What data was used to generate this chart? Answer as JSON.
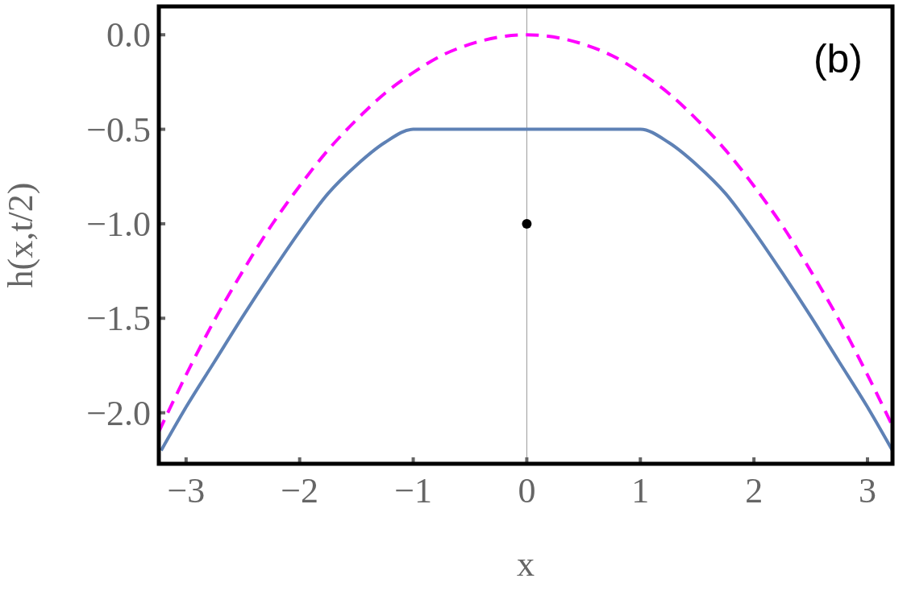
{
  "chart_data": {
    "type": "line",
    "xlabel": "x",
    "ylabel": "h(x,t/2)",
    "annotations": [
      "(b)"
    ],
    "xlim": [
      -3.24,
      3.22
    ],
    "ylim": [
      -2.27,
      0.15
    ],
    "xticks": [
      {
        "value": -3,
        "label": "−3"
      },
      {
        "value": -2,
        "label": "−2"
      },
      {
        "value": -1,
        "label": "−1"
      },
      0,
      1,
      2,
      3
    ],
    "yticks": [
      {
        "value": 0,
        "label": "0.0"
      },
      {
        "value": -0.5,
        "label": "−0.5"
      },
      {
        "value": -1,
        "label": "−1.0"
      },
      {
        "value": -1.5,
        "label": "−1.5"
      },
      {
        "value": -2,
        "label": "−2.0"
      }
    ],
    "grid": false,
    "ref_lines": [
      {
        "axis": "x",
        "value": 0,
        "color": "#999999"
      }
    ],
    "series": [
      {
        "color": "#ff00ff",
        "line_style": "dashed",
        "marker": "none",
        "x": [
          -3.24,
          -3,
          -2.75,
          -2.5,
          -2.25,
          -2,
          -1.75,
          -1.5,
          -1.25,
          -1,
          -0.75,
          -0.5,
          0,
          0.5,
          0.75,
          1,
          1.25,
          1.5,
          1.75,
          2,
          2.25,
          2.5,
          2.75,
          3,
          3.22
        ],
        "values": [
          -2.1,
          -1.8,
          -1.51,
          -1.25,
          -1.01,
          -0.8,
          -0.61,
          -0.45,
          -0.31,
          -0.2,
          -0.11,
          -0.05,
          0,
          -0.05,
          -0.11,
          -0.2,
          -0.31,
          -0.45,
          -0.61,
          -0.8,
          -1.01,
          -1.25,
          -1.51,
          -1.8,
          -2.07
        ]
      },
      {
        "color": "#5e81b5",
        "line_style": "solid",
        "marker": "none",
        "x": [
          -3.22,
          -3,
          -2.75,
          -2.5,
          -2.25,
          -2,
          -1.75,
          -1.5,
          -1.25,
          -1,
          1,
          1.25,
          1.5,
          1.75,
          2,
          2.25,
          2.5,
          2.75,
          3,
          3.22
        ],
        "values": [
          -2.2,
          -1.97,
          -1.73,
          -1.49,
          -1.26,
          -1.04,
          -0.84,
          -0.69,
          -0.57,
          -0.5,
          -0.5,
          -0.57,
          -0.69,
          -0.84,
          -1.04,
          -1.26,
          -1.49,
          -1.73,
          -1.97,
          -2.2
        ]
      },
      {
        "type": "scatter",
        "color": "#000000",
        "marker": "circle",
        "x": [
          0
        ],
        "values": [
          -1
        ]
      }
    ]
  }
}
